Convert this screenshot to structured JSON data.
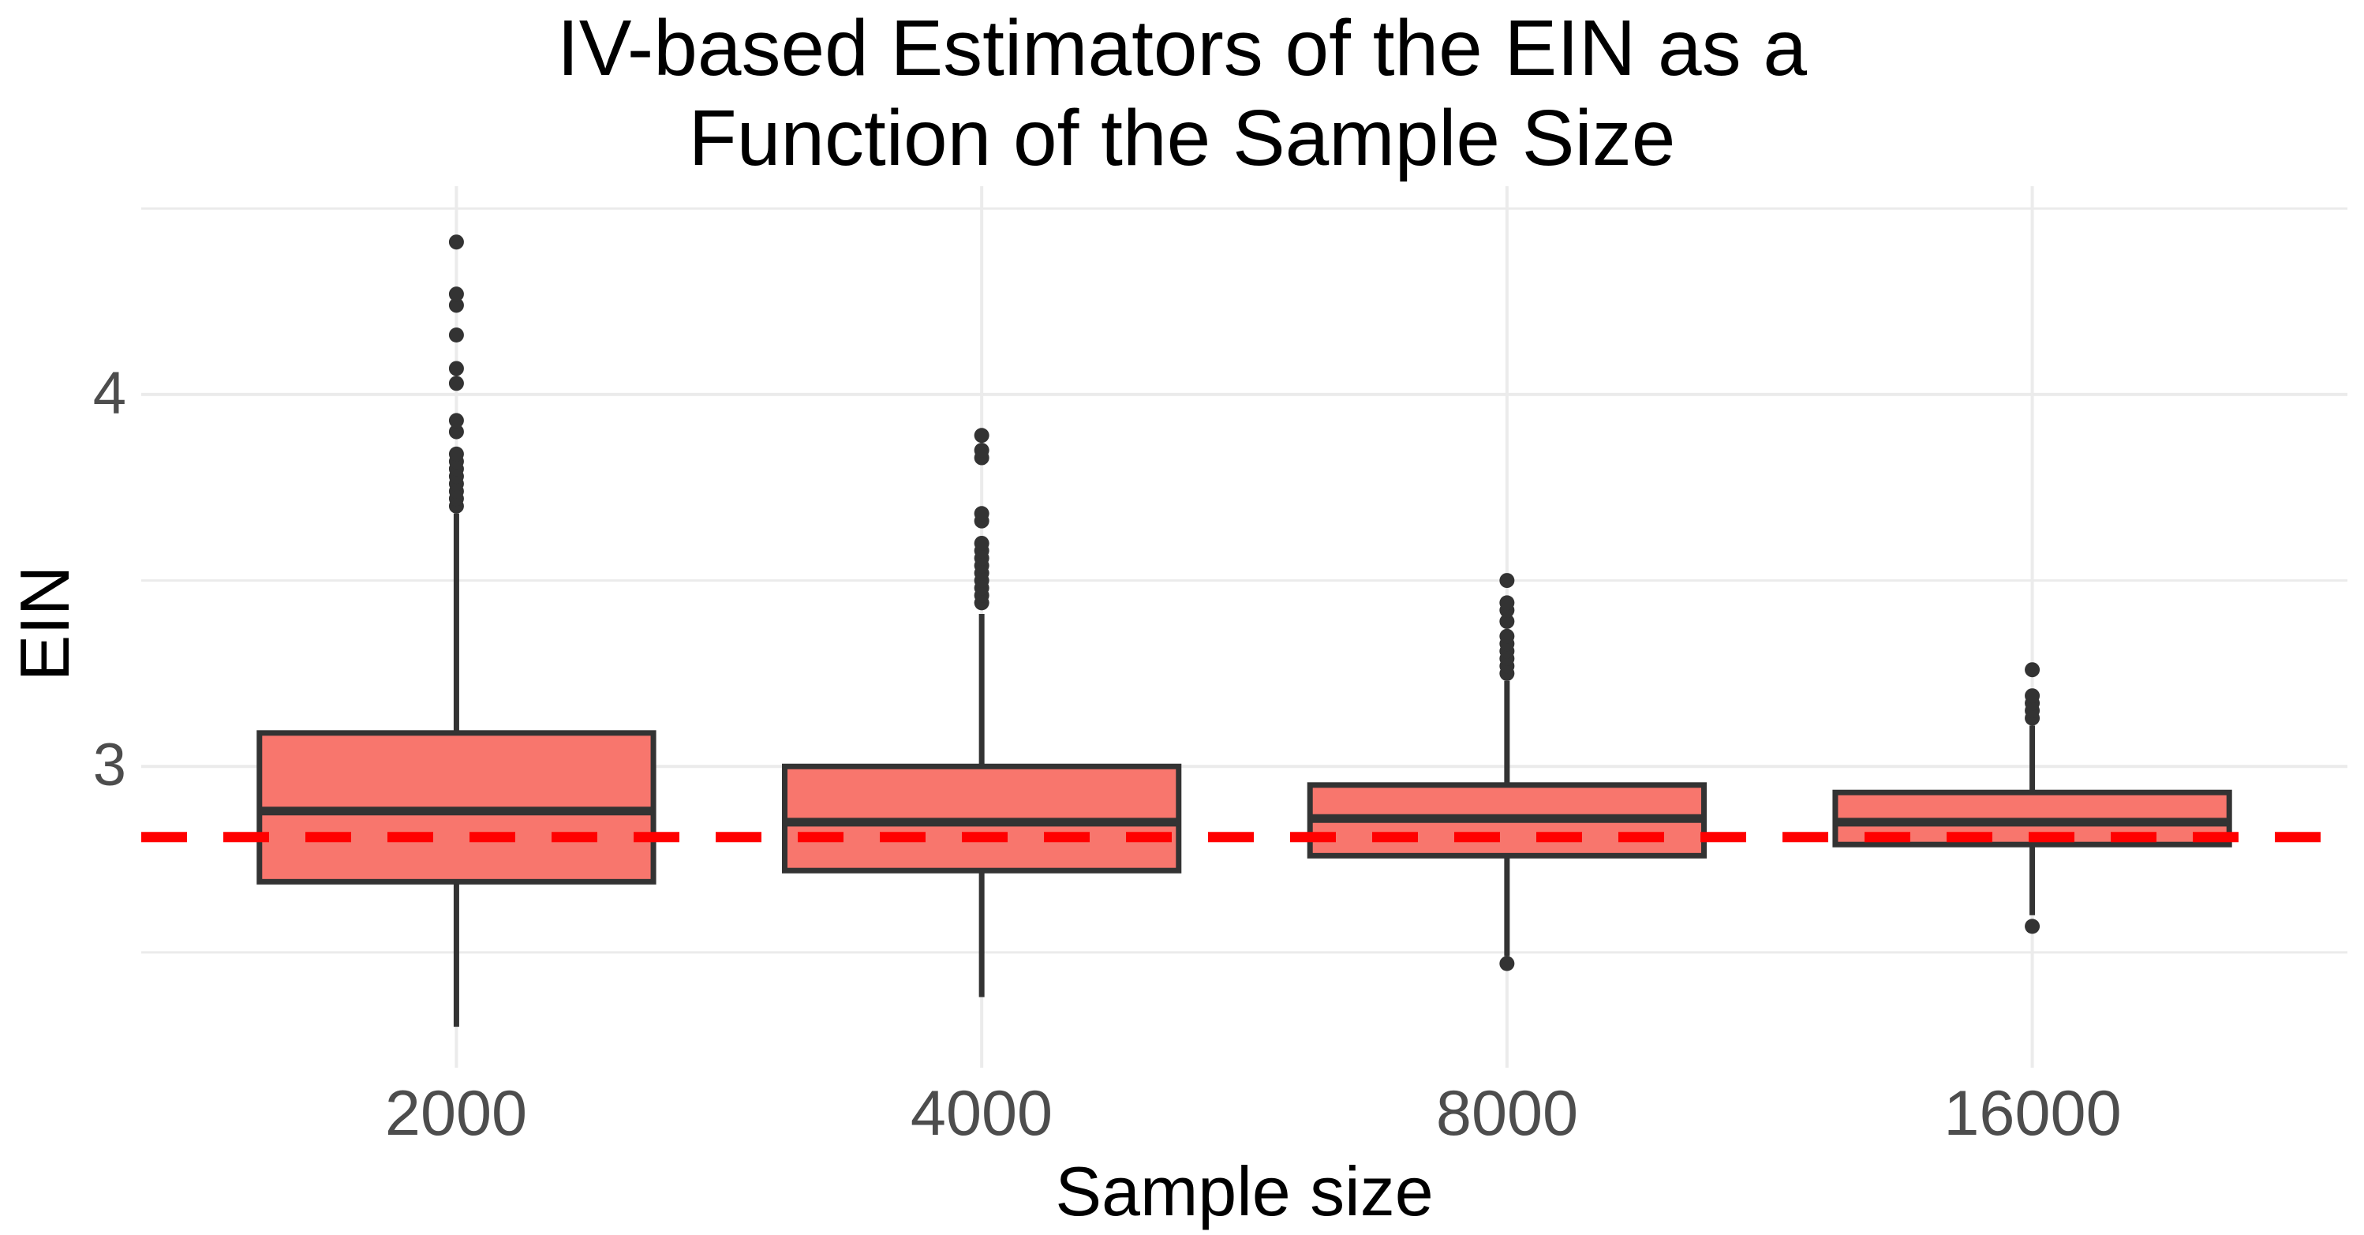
{
  "title": {
    "line1": "IV-based Estimators of the EIN as a",
    "line2": "Function of the Sample Size"
  },
  "chart_data": {
    "type": "boxplot",
    "title": "IV-based Estimators of the EIN as a Function of the Sample Size",
    "xlabel": "Sample size",
    "ylabel": "EIN",
    "categories": [
      "2000",
      "4000",
      "8000",
      "16000"
    ],
    "y_ticks": [
      3,
      4
    ],
    "y_minor_gridlines": [
      2.5,
      3.5,
      4.5
    ],
    "ylim": [
      2.19,
      4.56
    ],
    "grid": "horizontal major+minor, vertical major at category centers",
    "legend_position": "none",
    "reference_line": {
      "value": 2.81,
      "style": "dashed",
      "color": "#FF0000"
    },
    "colors": {
      "box_fill": "#F8766D",
      "box_stroke": "#333333",
      "outlier": "#333333",
      "gridline": "#EBEBEB",
      "tick_text": "#4d4d4d",
      "title_text": "#000000"
    },
    "series": [
      {
        "category": "2000",
        "whisker_low": 2.3,
        "q1": 2.69,
        "median": 2.88,
        "q3": 3.09,
        "whisker_high": 3.68,
        "outliers": [
          3.7,
          3.72,
          3.74,
          3.76,
          3.78,
          3.8,
          3.82,
          3.84,
          3.9,
          3.93,
          4.03,
          4.07,
          4.16,
          4.24,
          4.27,
          4.41
        ]
      },
      {
        "category": "4000",
        "whisker_low": 2.38,
        "q1": 2.72,
        "median": 2.85,
        "q3": 3.0,
        "whisker_high": 3.41,
        "outliers": [
          3.44,
          3.46,
          3.48,
          3.5,
          3.52,
          3.54,
          3.56,
          3.58,
          3.6,
          3.66,
          3.68,
          3.83,
          3.85,
          3.89
        ]
      },
      {
        "category": "8000",
        "whisker_low": 2.49,
        "q1": 2.76,
        "median": 2.86,
        "q3": 2.95,
        "whisker_high": 3.23,
        "outliers": [
          2.47,
          3.25,
          3.27,
          3.29,
          3.31,
          3.33,
          3.35,
          3.39,
          3.42,
          3.44,
          3.5
        ]
      },
      {
        "category": "16000",
        "whisker_low": 2.6,
        "q1": 2.79,
        "median": 2.85,
        "q3": 2.93,
        "whisker_high": 3.11,
        "outliers": [
          2.57,
          3.13,
          3.15,
          3.17,
          3.19,
          3.26
        ]
      }
    ]
  }
}
